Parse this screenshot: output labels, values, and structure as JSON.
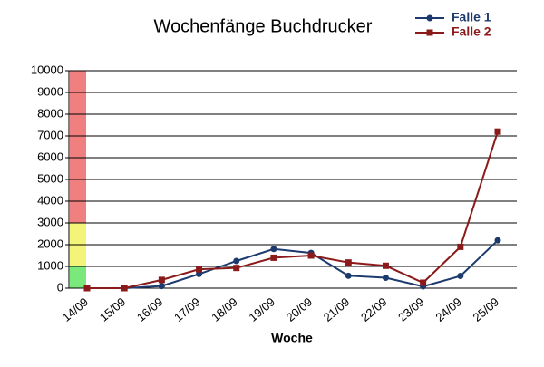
{
  "chart_data": {
    "type": "line",
    "title": "Wochenfänge Buchdrucker",
    "x_label": "Woche",
    "categories": [
      "14/09",
      "15/09",
      "16/09",
      "17/09",
      "18/09",
      "19/09",
      "20/09",
      "21/09",
      "22/09",
      "23/09",
      "24/09",
      "25/09"
    ],
    "series": [
      {
        "name": "Falle 1",
        "color": "#1c3a6e",
        "marker": "circle",
        "values": [
          0,
          0,
          100,
          650,
          1250,
          1800,
          1620,
          570,
          480,
          80,
          560,
          2200
        ]
      },
      {
        "name": "Falle 2",
        "color": "#8b1a1a",
        "marker": "square",
        "values": [
          0,
          0,
          380,
          870,
          930,
          1400,
          1500,
          1180,
          1030,
          250,
          1900,
          7200
        ]
      }
    ],
    "bands": [
      {
        "from": 0,
        "to": 1000,
        "color": "#7be87b"
      },
      {
        "from": 1000,
        "to": 3000,
        "color": "#f4f47a"
      },
      {
        "from": 3000,
        "to": 10000,
        "color": "#f08080"
      }
    ],
    "ylim": [
      0,
      10000
    ],
    "yticks": [
      0,
      1000,
      2000,
      3000,
      4000,
      5000,
      6000,
      7000,
      8000,
      9000,
      10000
    ],
    "grid": true,
    "legend": "top-right"
  }
}
